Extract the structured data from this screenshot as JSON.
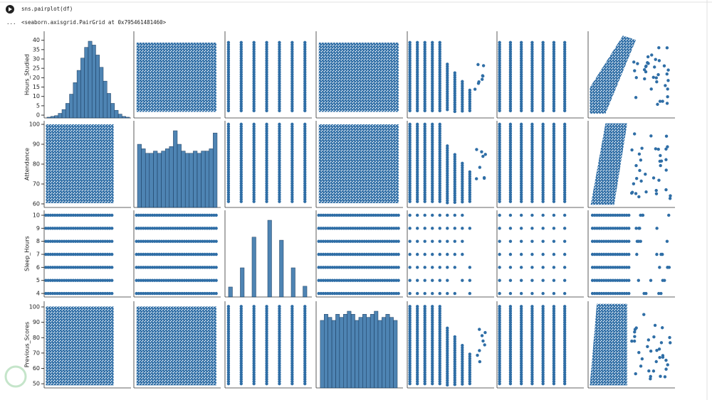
{
  "cell": {
    "code": "sns.pairplot(df)",
    "ellipsis": "...",
    "output": "<seaborn.axisgrid.PairGrid at 0x795461481460>"
  },
  "pairgrid": {
    "color": "#2f6ea6",
    "edgecolor": "#1b3a5c",
    "rows": [
      {
        "label": "Hours_Studied",
        "ylim": [
          -1.5,
          44.8
        ],
        "yticks": [
          0,
          5,
          10,
          15,
          20,
          25,
          30,
          35,
          40
        ]
      },
      {
        "label": "Attendance",
        "ylim": [
          58.2,
          101.8
        ],
        "yticks": [
          60,
          70,
          80,
          90,
          100
        ]
      },
      {
        "label": "Sleep_Hours",
        "ylim": [
          3.73,
          10.38
        ],
        "yticks": [
          4,
          5,
          6,
          7,
          8,
          9,
          10
        ]
      },
      {
        "label": "Previous_Scores",
        "ylim": [
          47.3,
          103.7
        ],
        "yticks": [
          50,
          60,
          70,
          80,
          90,
          100
        ]
      }
    ],
    "diagonal": [
      {
        "type": "histogram",
        "bins": [
          0,
          2,
          4,
          6,
          8,
          10,
          12,
          14,
          16,
          18,
          20,
          22,
          24,
          26,
          28,
          30,
          32,
          34,
          36,
          38,
          40,
          42,
          44
        ],
        "counts": [
          1,
          2,
          3,
          6,
          11,
          19,
          31,
          46,
          62,
          78,
          92,
          100,
          95,
          82,
          66,
          48,
          32,
          19,
          10,
          5,
          2,
          1
        ]
      },
      {
        "type": "histogram",
        "bins": [
          60,
          62,
          64,
          66,
          68,
          70,
          72,
          74,
          76,
          78,
          80,
          82,
          84,
          86,
          88,
          90,
          92,
          94,
          96,
          98,
          100
        ],
        "counts": [
          28,
          26,
          24,
          24,
          25,
          24,
          25,
          26,
          27,
          34,
          28,
          25,
          24,
          24,
          25,
          24,
          25,
          25,
          26,
          33
        ]
      },
      {
        "type": "histogram",
        "bins": [
          4,
          4.3,
          4.6,
          4.9,
          5.2,
          5.5,
          5.8,
          6.1,
          6.4,
          6.7,
          7,
          7.3,
          7.6,
          7.9,
          8.2,
          8.5,
          8.8,
          9.1,
          9.4,
          9.7,
          10
        ],
        "counts": [
          13,
          0,
          0,
          38,
          0,
          0,
          78,
          0,
          0,
          0,
          100,
          0,
          0,
          74,
          0,
          0,
          38,
          0,
          0,
          14
        ]
      },
      {
        "type": "histogram",
        "bins": [
          50,
          52.5,
          55,
          57.5,
          60,
          62.5,
          65,
          67.5,
          70,
          72.5,
          75,
          77.5,
          80,
          82.5,
          85,
          87.5,
          90,
          92.5,
          95,
          97.5,
          100
        ],
        "counts": [
          22,
          24,
          23,
          22,
          24,
          23,
          24,
          25,
          24,
          22,
          23,
          24,
          23,
          24,
          25,
          22,
          23,
          24,
          23,
          22
        ]
      }
    ]
  }
}
